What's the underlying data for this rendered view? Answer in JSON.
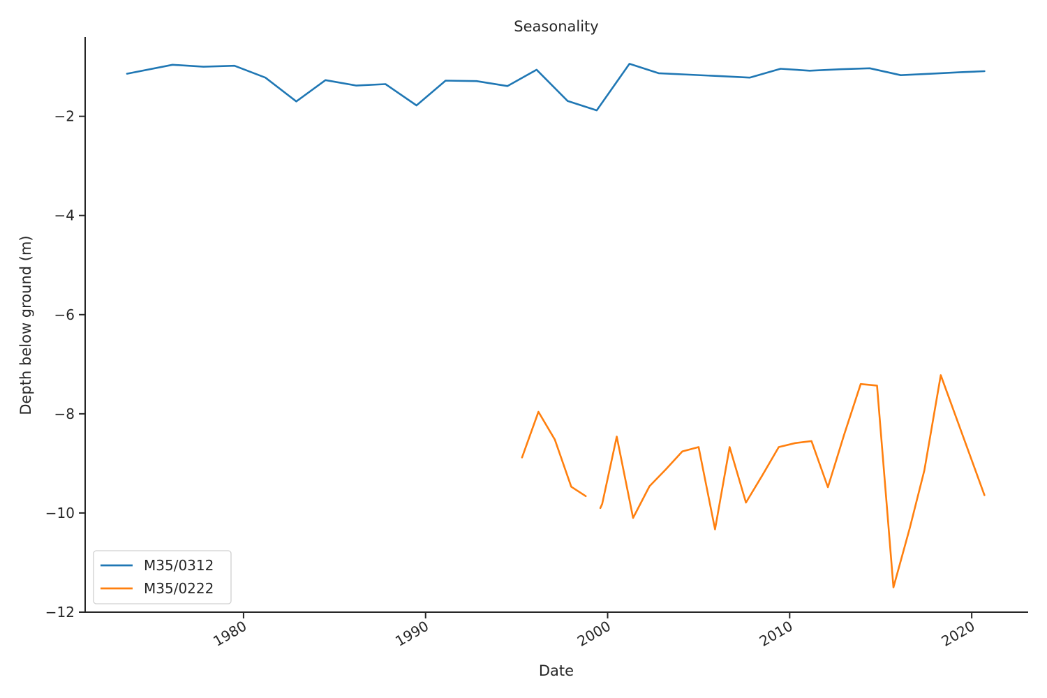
{
  "chart_data": {
    "type": "line",
    "title": "Seasonality",
    "xlabel": "Date",
    "ylabel": "Depth below ground (m)",
    "xlim": [
      1971.3,
      2023.1
    ],
    "ylim": [
      -12.0,
      -0.4
    ],
    "xticks": [
      1980,
      1990,
      2000,
      2010,
      2020
    ],
    "xtick_labels": [
      "1980",
      "1990",
      "2000",
      "2010",
      "2020"
    ],
    "yticks": [
      -12,
      -10,
      -8,
      -6,
      -4,
      -2
    ],
    "ytick_labels": [
      "−12",
      "−10",
      "−8",
      "−6",
      "−4",
      "−2"
    ],
    "grid": false,
    "legend_position": "lower-left",
    "series": [
      {
        "name": "M35/0312",
        "color": "#1f77b4",
        "segments": [
          [
            [
              1973.6,
              -1.14
            ],
            [
              1976.1,
              -0.96
            ],
            [
              1977.8,
              -1.0
            ],
            [
              1979.5,
              -0.98
            ],
            [
              1981.2,
              -1.22
            ],
            [
              1982.9,
              -1.7
            ],
            [
              1984.5,
              -1.27
            ],
            [
              1986.2,
              -1.38
            ],
            [
              1987.8,
              -1.35
            ],
            [
              1989.5,
              -1.78
            ],
            [
              1991.1,
              -1.28
            ],
            [
              1992.8,
              -1.29
            ],
            [
              1994.5,
              -1.39
            ],
            [
              1996.1,
              -1.06
            ],
            [
              1997.8,
              -1.69
            ],
            [
              1999.4,
              -1.88
            ],
            [
              2001.2,
              -0.94
            ],
            [
              2002.8,
              -1.13
            ],
            [
              2004.5,
              -1.16
            ],
            [
              2006.2,
              -1.19
            ],
            [
              2007.8,
              -1.22
            ],
            [
              2009.5,
              -1.04
            ],
            [
              2011.1,
              -1.08
            ],
            [
              2012.8,
              -1.05
            ],
            [
              2014.4,
              -1.03
            ],
            [
              2016.1,
              -1.17
            ],
            [
              2017.8,
              -1.14
            ],
            [
              2019.4,
              -1.11
            ],
            [
              2020.7,
              -1.09
            ]
          ]
        ]
      },
      {
        "name": "M35/0222",
        "color": "#ff7f0e",
        "segments": [
          [
            [
              1995.3,
              -8.88
            ],
            [
              1996.2,
              -7.96
            ],
            [
              1997.1,
              -8.52
            ],
            [
              1998.0,
              -9.47
            ],
            [
              1998.8,
              -9.66
            ]
          ],
          [
            [
              1999.6,
              -9.9
            ],
            [
              1999.7,
              -9.82
            ],
            [
              2000.5,
              -8.46
            ],
            [
              2001.4,
              -10.1
            ],
            [
              2002.3,
              -9.46
            ],
            [
              2003.2,
              -9.12
            ],
            [
              2004.1,
              -8.76
            ],
            [
              2005.0,
              -8.67
            ],
            [
              2005.9,
              -10.33
            ],
            [
              2006.7,
              -8.67
            ],
            [
              2007.6,
              -9.79
            ],
            [
              2008.5,
              -9.24
            ],
            [
              2009.4,
              -8.67
            ],
            [
              2010.3,
              -8.59
            ],
            [
              2011.2,
              -8.55
            ],
            [
              2012.1,
              -9.48
            ],
            [
              2013.0,
              -8.41
            ],
            [
              2013.9,
              -7.4
            ],
            [
              2014.8,
              -7.43
            ],
            [
              2015.7,
              -11.5
            ],
            [
              2016.6,
              -10.3
            ],
            [
              2017.4,
              -9.14
            ],
            [
              2018.3,
              -7.22
            ],
            [
              2019.5,
              -8.43
            ],
            [
              2020.7,
              -9.64
            ]
          ]
        ]
      }
    ]
  }
}
